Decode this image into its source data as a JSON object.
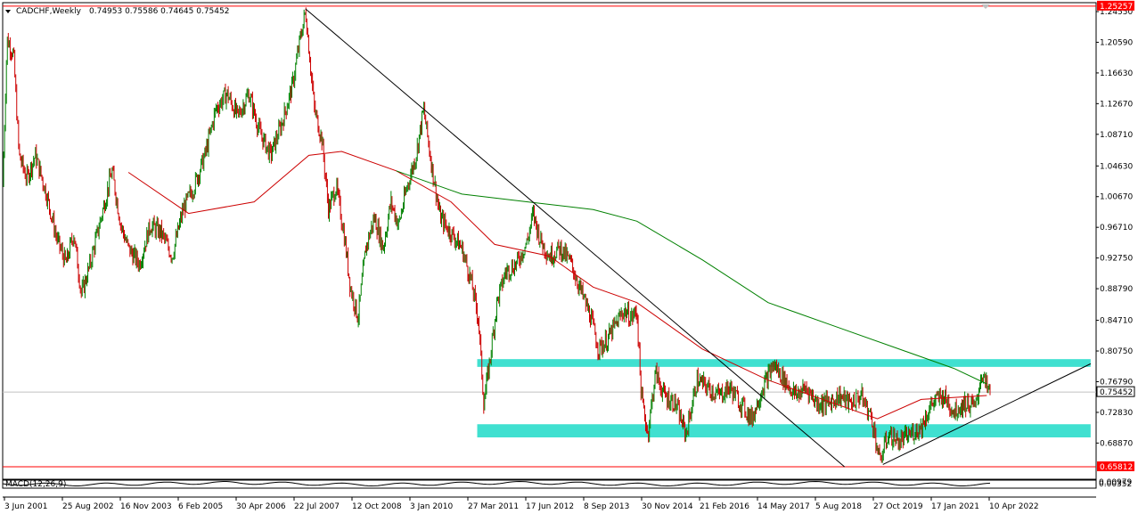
{
  "header": {
    "symbol_title": "CADCHF,Weekly",
    "ohlc": "0.74953 0.75586 0.74645 0.75452"
  },
  "indicator_label": "MACD(12,26,9)",
  "chart_data": {
    "type": "candlestick",
    "symbol": "CADCHF",
    "timeframe": "Weekly",
    "ylim": [
      0.642,
      1.257
    ],
    "y_ticks": [
      "1.24550",
      "1.20590",
      "1.16630",
      "1.12670",
      "1.08710",
      "1.04630",
      "1.00670",
      "0.96710",
      "0.92750",
      "0.88790",
      "0.84710",
      "0.80750",
      "0.76790",
      "0.72830",
      "0.68870"
    ],
    "x_ticks": [
      "3 Jun 2001",
      "25 Aug 2002",
      "16 Nov 2003",
      "6 Feb 2005",
      "30 Apr 2006",
      "22 Jul 2007",
      "12 Oct 2008",
      "3 Jan 2010",
      "27 Mar 2011",
      "17 Jun 2012",
      "8 Sep 2013",
      "30 Nov 2014",
      "21 Feb 2016",
      "14 May 2017",
      "5 Aug 2018",
      "27 Oct 2019",
      "17 Jan 2021",
      "10 Apr 2022"
    ],
    "colors": {
      "up": "#008000",
      "down": "#cc0000",
      "ma_fast": "#cc0000",
      "ma_slow": "#008000",
      "zone": "#40e0d0",
      "level": "#ff0000",
      "trendline": "#000000"
    },
    "price_path": [
      [
        0,
        1.02
      ],
      [
        0.004,
        1.21
      ],
      [
        0.01,
        1.19
      ],
      [
        0.015,
        1.06
      ],
      [
        0.022,
        1.03
      ],
      [
        0.03,
        1.06
      ],
      [
        0.04,
        1.01
      ],
      [
        0.05,
        0.95
      ],
      [
        0.058,
        0.92
      ],
      [
        0.065,
        0.96
      ],
      [
        0.072,
        0.88
      ],
      [
        0.08,
        0.92
      ],
      [
        0.09,
        0.98
      ],
      [
        0.1,
        1.04
      ],
      [
        0.108,
        0.97
      ],
      [
        0.115,
        0.94
      ],
      [
        0.125,
        0.92
      ],
      [
        0.135,
        0.97
      ],
      [
        0.145,
        0.96
      ],
      [
        0.155,
        0.93
      ],
      [
        0.165,
        0.99
      ],
      [
        0.175,
        1.02
      ],
      [
        0.185,
        1.06
      ],
      [
        0.195,
        1.12
      ],
      [
        0.205,
        1.14
      ],
      [
        0.215,
        1.11
      ],
      [
        0.225,
        1.14
      ],
      [
        0.235,
        1.09
      ],
      [
        0.245,
        1.06
      ],
      [
        0.255,
        1.1
      ],
      [
        0.265,
        1.15
      ],
      [
        0.272,
        1.21
      ],
      [
        0.277,
        1.246
      ],
      [
        0.285,
        1.12
      ],
      [
        0.292,
        1.08
      ],
      [
        0.298,
        0.99
      ],
      [
        0.305,
        1.02
      ],
      [
        0.312,
        0.96
      ],
      [
        0.318,
        0.89
      ],
      [
        0.325,
        0.85
      ],
      [
        0.332,
        0.94
      ],
      [
        0.34,
        0.98
      ],
      [
        0.348,
        0.94
      ],
      [
        0.355,
        1.0
      ],
      [
        0.362,
        0.97
      ],
      [
        0.37,
        1.02
      ],
      [
        0.378,
        1.06
      ],
      [
        0.385,
        1.12
      ],
      [
        0.392,
        1.05
      ],
      [
        0.4,
        0.98
      ],
      [
        0.41,
        0.96
      ],
      [
        0.42,
        0.94
      ],
      [
        0.428,
        0.9
      ],
      [
        0.435,
        0.85
      ],
      [
        0.44,
        0.74
      ],
      [
        0.445,
        0.79
      ],
      [
        0.452,
        0.87
      ],
      [
        0.46,
        0.91
      ],
      [
        0.47,
        0.92
      ],
      [
        0.48,
        0.95
      ],
      [
        0.485,
        0.985
      ],
      [
        0.492,
        0.95
      ],
      [
        0.5,
        0.93
      ],
      [
        0.51,
        0.94
      ],
      [
        0.52,
        0.92
      ],
      [
        0.53,
        0.88
      ],
      [
        0.538,
        0.85
      ],
      [
        0.545,
        0.81
      ],
      [
        0.552,
        0.82
      ],
      [
        0.56,
        0.84
      ],
      [
        0.568,
        0.86
      ],
      [
        0.575,
        0.85
      ],
      [
        0.58,
        0.86
      ],
      [
        0.584,
        0.75
      ],
      [
        0.59,
        0.7
      ],
      [
        0.597,
        0.78
      ],
      [
        0.605,
        0.75
      ],
      [
        0.615,
        0.74
      ],
      [
        0.625,
        0.7
      ],
      [
        0.635,
        0.77
      ],
      [
        0.645,
        0.76
      ],
      [
        0.655,
        0.75
      ],
      [
        0.665,
        0.76
      ],
      [
        0.675,
        0.74
      ],
      [
        0.685,
        0.72
      ],
      [
        0.695,
        0.76
      ],
      [
        0.705,
        0.79
      ],
      [
        0.715,
        0.77
      ],
      [
        0.725,
        0.75
      ],
      [
        0.735,
        0.76
      ],
      [
        0.745,
        0.74
      ],
      [
        0.755,
        0.74
      ],
      [
        0.765,
        0.75
      ],
      [
        0.775,
        0.74
      ],
      [
        0.785,
        0.75
      ],
      [
        0.795,
        0.72
      ],
      [
        0.802,
        0.665
      ],
      [
        0.81,
        0.7
      ],
      [
        0.82,
        0.69
      ],
      [
        0.83,
        0.7
      ],
      [
        0.84,
        0.71
      ],
      [
        0.85,
        0.74
      ],
      [
        0.86,
        0.75
      ],
      [
        0.87,
        0.73
      ],
      [
        0.88,
        0.74
      ],
      [
        0.89,
        0.735
      ],
      [
        0.895,
        0.78
      ],
      [
        0.9,
        0.76
      ],
      [
        0.903,
        0.7545
      ]
    ],
    "ma_fast_path": [
      [
        0.115,
        1.038
      ],
      [
        0.17,
        0.985
      ],
      [
        0.23,
        1.0
      ],
      [
        0.28,
        1.06
      ],
      [
        0.31,
        1.065
      ],
      [
        0.36,
        1.04
      ],
      [
        0.41,
        1.0
      ],
      [
        0.45,
        0.945
      ],
      [
        0.5,
        0.93
      ],
      [
        0.54,
        0.89
      ],
      [
        0.58,
        0.87
      ],
      [
        0.64,
        0.81
      ],
      [
        0.7,
        0.77
      ],
      [
        0.76,
        0.74
      ],
      [
        0.8,
        0.72
      ],
      [
        0.84,
        0.745
      ],
      [
        0.9,
        0.75
      ]
    ],
    "ma_slow_path": [
      [
        0.36,
        1.04
      ],
      [
        0.42,
        1.01
      ],
      [
        0.48,
        1.0
      ],
      [
        0.54,
        0.99
      ],
      [
        0.58,
        0.975
      ],
      [
        0.64,
        0.925
      ],
      [
        0.7,
        0.87
      ],
      [
        0.76,
        0.84
      ],
      [
        0.82,
        0.81
      ],
      [
        0.87,
        0.785
      ],
      [
        0.9,
        0.765
      ]
    ],
    "levels": {
      "upper": "1.25257",
      "lower": "0.65812"
    },
    "upper_level_value": 1.25257,
    "lower_level_value": 0.65812,
    "current_price": "0.75452",
    "current_price_value": 0.75452,
    "zones": [
      {
        "x0": 0.434,
        "x1": 0.995,
        "y0": 0.787,
        "y1": 0.797
      },
      {
        "x0": 0.434,
        "x1": 0.995,
        "y0": 0.696,
        "y1": 0.713
      }
    ],
    "trendlines": [
      {
        "x0": 0.277,
        "y0": 1.249,
        "x1": 0.77,
        "y1": 0.658
      },
      {
        "x0": 0.805,
        "y0": 0.661,
        "x1": 0.995,
        "y1": 0.791
      }
    ]
  },
  "macd_axis": {
    "upper": "0.00979",
    "mid": "0.00352"
  }
}
